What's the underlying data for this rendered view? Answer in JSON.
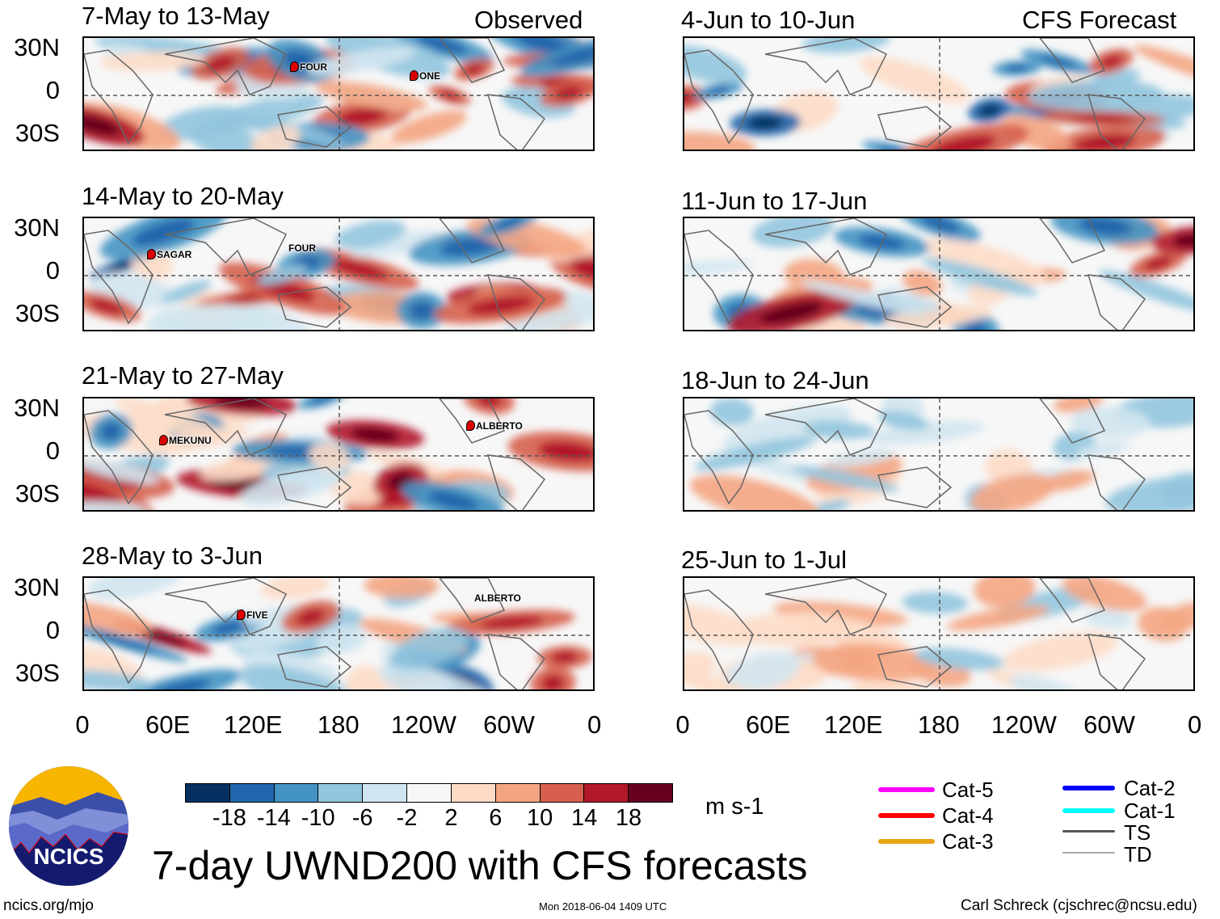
{
  "header": {
    "observed_label": "Observed",
    "forecast_label": "CFS Forecast"
  },
  "panels": {
    "observed": [
      {
        "title": "7-May to 13-May",
        "storms": [
          "FOUR",
          "ONE"
        ]
      },
      {
        "title": "14-May to 20-May",
        "storms": [
          "SAGAR",
          "FOUR"
        ]
      },
      {
        "title": "21-May to 27-May",
        "storms": [
          "MEKUNU",
          "ALBERTO"
        ]
      },
      {
        "title": "28-May to 3-Jun",
        "storms": [
          "FIVE",
          "ALBERTO"
        ]
      }
    ],
    "forecast": [
      {
        "title": "4-Jun to 10-Jun"
      },
      {
        "title": "11-Jun to 17-Jun"
      },
      {
        "title": "18-Jun to 24-Jun"
      },
      {
        "title": "25-Jun to 1-Jul"
      }
    ]
  },
  "axes": {
    "lat_labels": [
      "30N",
      "0",
      "30S"
    ],
    "lon_labels": [
      "0",
      "60E",
      "120E",
      "180",
      "120W",
      "60W",
      "0"
    ]
  },
  "colorbar": {
    "colors": [
      "#053061",
      "#2166ac",
      "#4393c3",
      "#92c5de",
      "#d1e5f0",
      "#f7f7f7",
      "#fddbc7",
      "#f4a582",
      "#d6604d",
      "#b2182b",
      "#67001f"
    ],
    "labels": [
      "-18",
      "-14",
      "-10",
      "-6",
      "-2",
      "2",
      "6",
      "10",
      "14",
      "18"
    ],
    "units": "m s-1"
  },
  "legend": [
    {
      "label": "Cat-5",
      "color": "#ff00ff"
    },
    {
      "label": "Cat-4",
      "color": "#ff0000"
    },
    {
      "label": "Cat-3",
      "color": "#e8a317"
    },
    {
      "label": "Cat-2",
      "color": "#0000ff"
    },
    {
      "label": "Cat-1",
      "color": "#00ffff"
    },
    {
      "label": "TS",
      "color": "#555555"
    },
    {
      "label": "TD",
      "color": "#aaaaaa"
    }
  ],
  "logo": {
    "text": "NCICS"
  },
  "title": "7-day UWND200 with CFS forecasts",
  "footer": {
    "left": "ncics.org/mjo",
    "center": "Mon 2018-06-04 1409 UTC",
    "right": "Carl Schreck (cjschrec@ncsu.edu)"
  }
}
